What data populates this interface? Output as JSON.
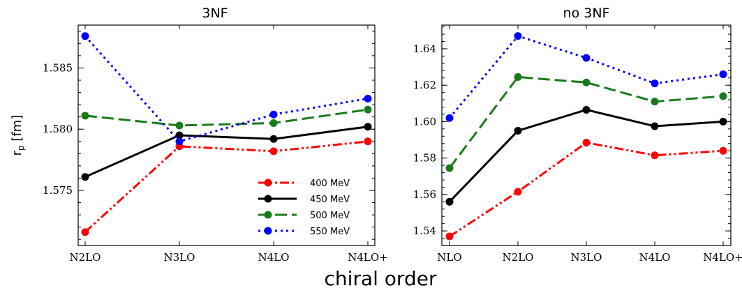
{
  "figure": {
    "ylabel": "r",
    "ylabel_sub": "p",
    "ylabel_unit": "[fm]",
    "xlabel": "chiral order"
  },
  "chart_data": [
    {
      "type": "line",
      "title": "3NF",
      "categories": [
        "N2LO",
        "N3LO",
        "N4LO",
        "N4LO+"
      ],
      "ylim": [
        1.5705,
        1.5885
      ],
      "yticks": [
        1.575,
        1.58,
        1.585
      ],
      "ytick_labels": [
        "1.575",
        "1.580",
        "1.585"
      ],
      "legend": "lower-right",
      "series": [
        {
          "name": "400 MeV",
          "color": "#ff0000",
          "style": "dashdotdot",
          "values": [
            1.5716,
            1.5786,
            1.5782,
            1.579
          ]
        },
        {
          "name": "450 MeV",
          "color": "#000000",
          "style": "solid",
          "values": [
            1.5761,
            1.5795,
            1.5792,
            1.5802
          ]
        },
        {
          "name": "500 MeV",
          "color": "#1a7a1a",
          "style": "dashed",
          "values": [
            1.5811,
            1.5803,
            1.5805,
            1.5816
          ]
        },
        {
          "name": "550 MeV",
          "color": "#0000ff",
          "style": "dotted",
          "values": [
            1.5876,
            1.579,
            1.5812,
            1.5825
          ]
        }
      ]
    },
    {
      "type": "line",
      "title": "no 3NF",
      "categories": [
        "NLO",
        "N2LO",
        "N3LO",
        "N4LO",
        "N4LO+"
      ],
      "ylim": [
        1.532,
        1.653
      ],
      "yticks": [
        1.54,
        1.56,
        1.58,
        1.6,
        1.62,
        1.64
      ],
      "ytick_labels": [
        "1.54",
        "1.56",
        "1.58",
        "1.60",
        "1.62",
        "1.64"
      ],
      "series": [
        {
          "name": "400 MeV",
          "color": "#ff0000",
          "style": "dashdotdot",
          "values": [
            1.537,
            1.5615,
            1.5885,
            1.5815,
            1.584
          ]
        },
        {
          "name": "450 MeV",
          "color": "#000000",
          "style": "solid",
          "values": [
            1.556,
            1.595,
            1.6065,
            1.5975,
            1.6
          ]
        },
        {
          "name": "500 MeV",
          "color": "#1a7a1a",
          "style": "dashed",
          "values": [
            1.5745,
            1.6245,
            1.6215,
            1.611,
            1.614
          ]
        },
        {
          "name": "550 MeV",
          "color": "#0000ff",
          "style": "dotted",
          "values": [
            1.602,
            1.647,
            1.635,
            1.621,
            1.626
          ]
        }
      ]
    }
  ]
}
